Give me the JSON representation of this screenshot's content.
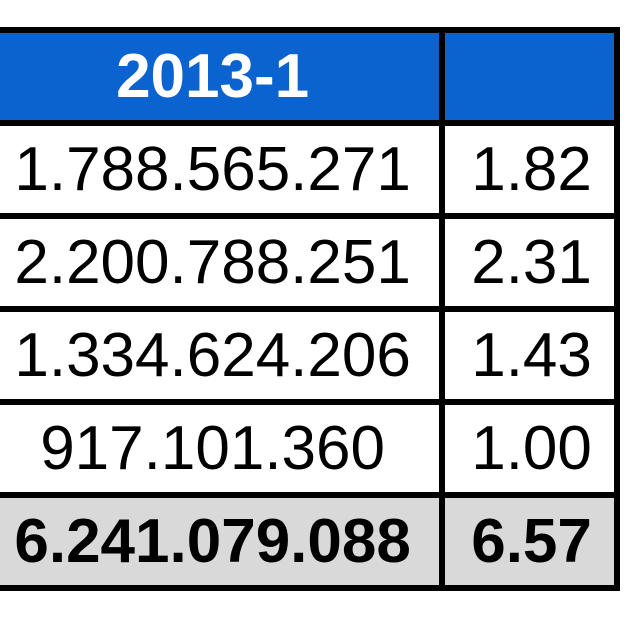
{
  "table": {
    "headers": [
      "2013-1",
      ""
    ],
    "rows": [
      {
        "c1": "1.788.565.271",
        "c2": "1.82"
      },
      {
        "c1": "2.200.788.251",
        "c2": "2.31"
      },
      {
        "c1": "1.334.624.206",
        "c2": "1.43"
      },
      {
        "c1": "917.101.360",
        "c2": "1.00"
      }
    ],
    "total": {
      "c1": "6.241.079.088",
      "c2": "6.57"
    }
  },
  "colors": {
    "header_bg": "#0a63cf",
    "header_text": "#ffffff",
    "total_bg": "#d9d9d9",
    "border": "#000000"
  }
}
